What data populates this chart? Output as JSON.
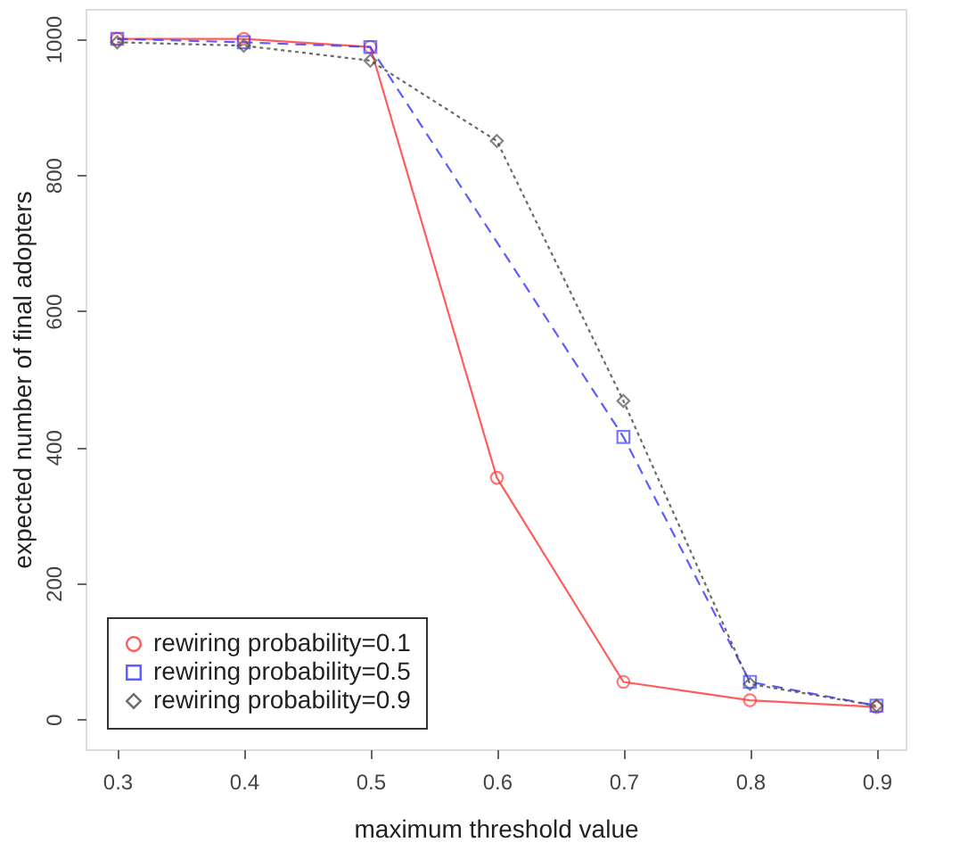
{
  "chart_data": {
    "type": "line",
    "xlabel": "maximum threshold value",
    "ylabel": "expected number of final adopters",
    "x": [
      0.3,
      0.4,
      0.5,
      0.6,
      0.7,
      0.8,
      0.9
    ],
    "series": [
      {
        "name": "rewiring probability=0.1",
        "color": "#ff4040",
        "marker": "circle",
        "line_style": "solid",
        "values": [
          1000,
          1000,
          988,
          355,
          55,
          28,
          18
        ]
      },
      {
        "name": "rewiring probability=0.5",
        "color": "#4040ff",
        "marker": "square",
        "line_style": "dashed",
        "x": [
          0.3,
          0.4,
          0.5,
          0.7,
          0.8,
          0.9
        ],
        "values": [
          1000,
          995,
          988,
          415,
          55,
          20
        ]
      },
      {
        "name": "rewiring probability=0.9",
        "color": "#505050",
        "marker": "diamond",
        "line_style": "dotted",
        "values": [
          995,
          990,
          968,
          850,
          468,
          52,
          20
        ]
      }
    ],
    "xlim": [
      0.275,
      0.923
    ],
    "ylim": [
      -44,
      1044
    ],
    "xticks": [
      0.3,
      0.4,
      0.5,
      0.6,
      0.7,
      0.8,
      0.9
    ],
    "yticks": [
      0,
      200,
      400,
      600,
      800,
      1000
    ],
    "grid": false,
    "legend": "bottom left"
  }
}
